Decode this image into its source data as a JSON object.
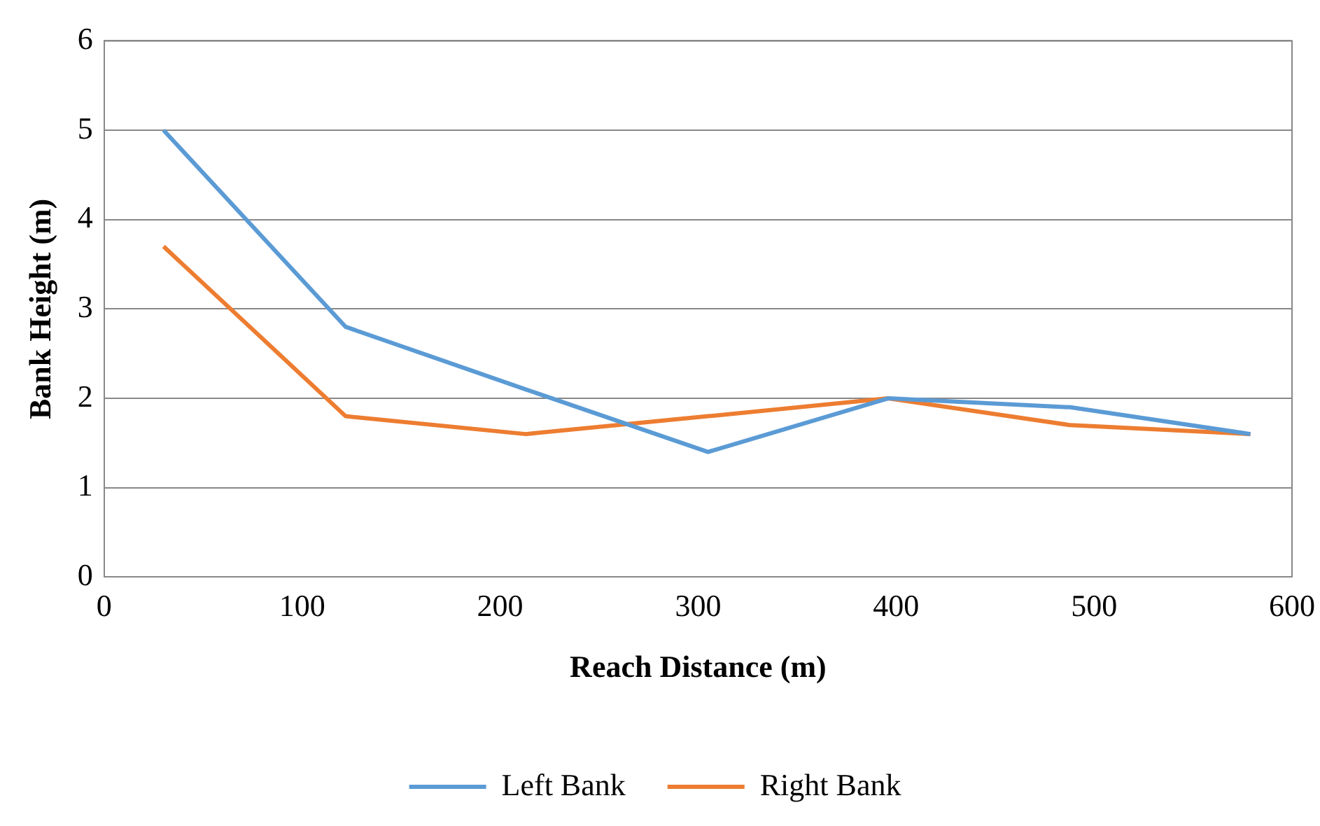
{
  "chart_data": {
    "type": "line",
    "xlabel": "Reach Distance (m)",
    "ylabel": "Bank Height (m)",
    "x": [
      30,
      122,
      213,
      305,
      396,
      488,
      579
    ],
    "series": [
      {
        "name": "Left Bank",
        "color": "#5b9bd5",
        "values": [
          5,
          2.8,
          2.1,
          1.4,
          2.0,
          1.9,
          1.6
        ]
      },
      {
        "name": "Right Bank",
        "color": "#ed7d31",
        "values": [
          3.7,
          1.8,
          1.6,
          1.8,
          2.0,
          1.7,
          1.6
        ]
      }
    ],
    "xlim": [
      0,
      600
    ],
    "xticks": [
      0,
      100,
      200,
      300,
      400,
      500,
      600
    ],
    "ylim": [
      0,
      6
    ],
    "yticks": [
      0,
      1,
      2,
      3,
      4,
      5,
      6
    ],
    "grid": "y",
    "legend": "bottom",
    "marker": "none",
    "line_style": "solid"
  }
}
